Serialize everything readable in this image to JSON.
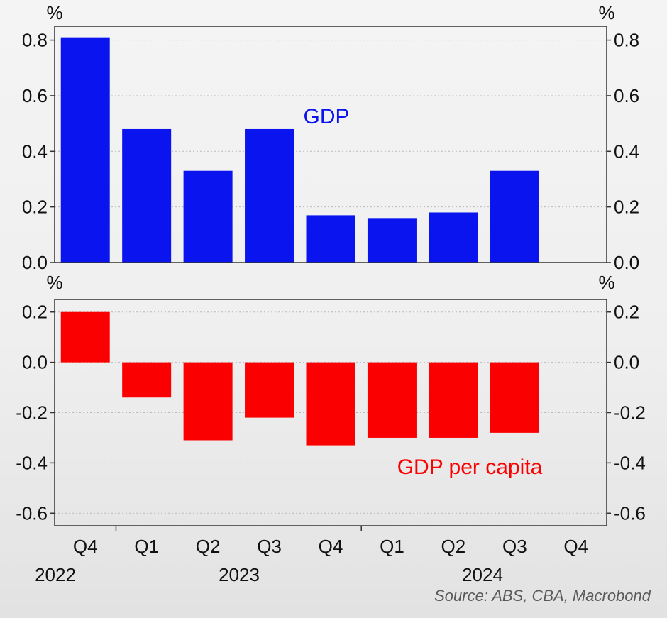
{
  "chart_data": [
    {
      "type": "bar",
      "unit_left": "%",
      "unit_right": "%",
      "series_label": "GDP",
      "color": "#0a14ee",
      "categories": [
        "Q4",
        "Q1",
        "Q2",
        "Q3",
        "Q4",
        "Q1",
        "Q2",
        "Q3",
        "Q4"
      ],
      "values": [
        0.81,
        0.48,
        0.33,
        0.48,
        0.17,
        0.16,
        0.18,
        0.33,
        null
      ],
      "ylim": [
        0,
        0.85
      ],
      "yticks": [
        "0.8",
        "0.6",
        "0.4",
        "0.2",
        "0.0"
      ],
      "grid": true
    },
    {
      "type": "bar",
      "unit_left": "%",
      "unit_right": "%",
      "series_label": "GDP per capita",
      "color": "#fb0000",
      "categories": [
        "Q4",
        "Q1",
        "Q2",
        "Q3",
        "Q4",
        "Q1",
        "Q2",
        "Q3",
        "Q4"
      ],
      "values": [
        0.2,
        -0.14,
        -0.31,
        -0.22,
        -0.33,
        -0.3,
        -0.3,
        -0.28,
        null
      ],
      "ylim": [
        -0.65,
        0.25
      ],
      "yticks": [
        "0.2",
        "0.0",
        "-0.2",
        "-0.4",
        "-0.6"
      ],
      "grid": true
    }
  ],
  "x_axis": {
    "quarters": [
      "Q4",
      "Q1",
      "Q2",
      "Q3",
      "Q4",
      "Q1",
      "Q2",
      "Q3",
      "Q4"
    ],
    "years": [
      "2022",
      "2023",
      "2024"
    ]
  },
  "source": "Source: ABS, CBA, Macrobond"
}
